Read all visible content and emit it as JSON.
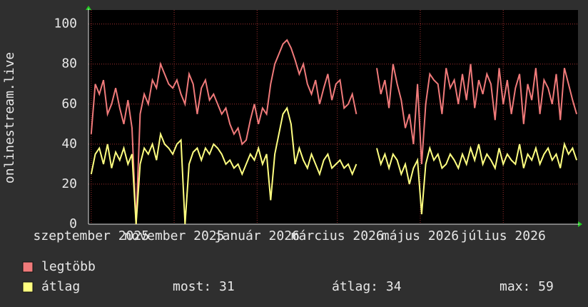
{
  "chart_data": {
    "type": "line",
    "y_label": "onlinestream.live",
    "x": [
      0,
      3,
      6,
      9,
      12,
      15,
      18,
      21,
      24,
      27,
      30,
      33,
      36,
      39,
      42,
      45,
      48,
      51,
      54,
      57,
      60,
      63,
      66,
      69,
      72,
      75,
      78,
      81,
      84,
      87,
      90,
      93,
      96,
      99,
      102,
      105,
      108,
      111,
      114,
      117,
      120,
      123,
      126,
      129,
      132,
      135,
      138,
      141,
      144,
      147,
      150,
      153,
      156,
      159,
      162,
      165,
      168,
      171,
      174,
      177,
      180,
      183,
      186,
      189,
      192,
      195,
      198,
      201,
      204,
      207,
      210,
      213,
      216,
      219,
      222,
      225,
      228,
      231,
      234,
      237,
      240,
      243,
      246,
      249,
      252,
      255,
      258,
      261,
      264,
      267,
      270,
      273,
      276,
      279,
      282,
      285,
      288,
      291,
      294,
      297,
      300,
      303,
      306,
      309,
      312,
      315,
      318,
      321,
      324,
      327,
      330,
      333,
      336,
      339,
      342,
      345,
      348,
      351,
      354,
      357
    ],
    "xlim": [
      -2,
      358
    ],
    "xticks": [
      {
        "value": 0,
        "label": "szeptember 2025"
      },
      {
        "value": 61,
        "label": "november 2025"
      },
      {
        "value": 122,
        "label": "január 2026"
      },
      {
        "value": 181,
        "label": "március 2026"
      },
      {
        "value": 242,
        "label": "május 2026"
      },
      {
        "value": 303,
        "label": "július 2026"
      }
    ],
    "ylim": [
      0,
      107
    ],
    "yticks": [
      0,
      20,
      40,
      60,
      80,
      100
    ],
    "grid": true,
    "series": [
      {
        "name": "legtöbb",
        "color": "#f07a7a",
        "values": [
          45,
          70,
          65,
          72,
          55,
          60,
          68,
          58,
          50,
          62,
          48,
          0,
          55,
          65,
          60,
          72,
          68,
          80,
          75,
          70,
          68,
          72,
          65,
          60,
          75,
          70,
          55,
          68,
          72,
          62,
          65,
          60,
          55,
          58,
          50,
          45,
          48,
          40,
          42,
          52,
          60,
          50,
          58,
          55,
          70,
          80,
          85,
          90,
          92,
          88,
          82,
          75,
          80,
          70,
          65,
          72,
          60,
          68,
          75,
          62,
          70,
          72,
          58,
          60,
          65,
          55,
          null,
          null,
          null,
          null,
          78,
          65,
          72,
          58,
          80,
          70,
          62,
          48,
          55,
          40,
          70,
          30,
          60,
          75,
          72,
          70,
          55,
          78,
          68,
          72,
          60,
          75,
          62,
          80,
          58,
          72,
          65,
          75,
          70,
          52,
          78,
          60,
          72,
          55,
          68,
          75,
          50,
          70,
          62,
          78,
          55,
          72,
          68,
          60,
          75,
          52,
          78,
          70,
          62,
          55
        ]
      },
      {
        "name": "átlag",
        "color": "#ffff80",
        "values": [
          25,
          35,
          38,
          30,
          40,
          28,
          36,
          32,
          38,
          30,
          35,
          0,
          30,
          38,
          35,
          40,
          32,
          45,
          40,
          38,
          35,
          40,
          42,
          0,
          30,
          36,
          38,
          32,
          38,
          35,
          40,
          38,
          35,
          30,
          32,
          28,
          30,
          25,
          30,
          35,
          32,
          38,
          30,
          35,
          12,
          35,
          45,
          55,
          58,
          50,
          30,
          38,
          32,
          28,
          35,
          30,
          25,
          32,
          35,
          28,
          30,
          32,
          28,
          30,
          25,
          30,
          null,
          null,
          null,
          null,
          38,
          30,
          35,
          28,
          35,
          32,
          25,
          30,
          20,
          28,
          32,
          5,
          30,
          38,
          32,
          35,
          28,
          30,
          35,
          32,
          28,
          35,
          30,
          38,
          32,
          40,
          30,
          35,
          32,
          28,
          38,
          30,
          35,
          32,
          30,
          40,
          28,
          35,
          32,
          38,
          30,
          35,
          38,
          32,
          35,
          28,
          40,
          35,
          38,
          32
        ]
      }
    ],
    "stats": [
      "most: 31",
      "átlag: 34",
      "max: 59"
    ]
  }
}
